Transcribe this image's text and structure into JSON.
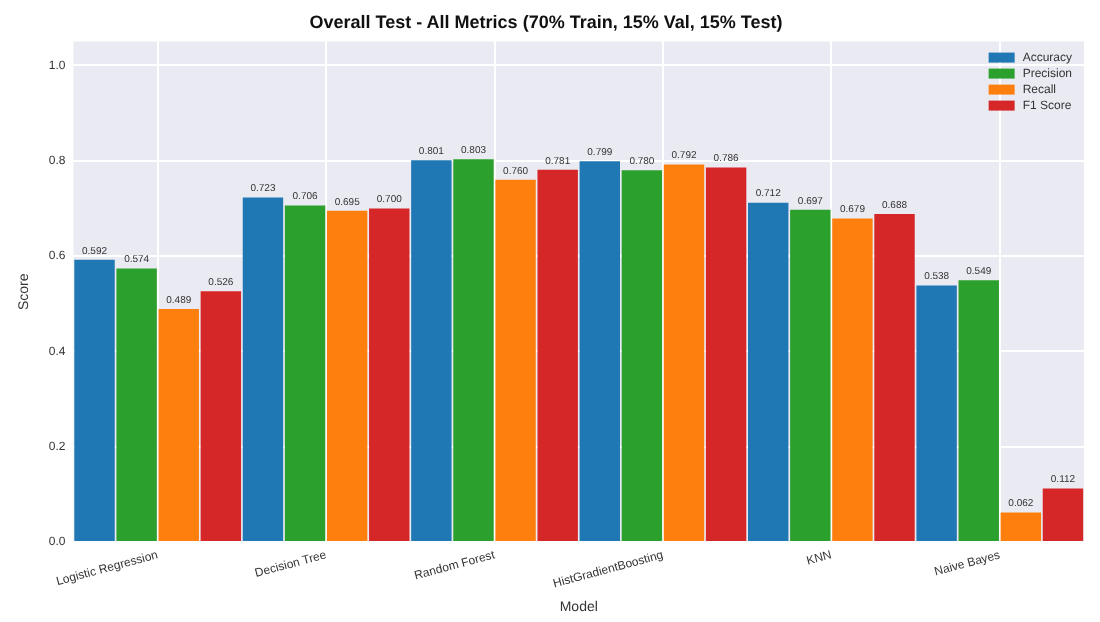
{
  "chart_data": {
    "type": "bar",
    "title": "Overall Test - All Metrics (70% Train, 15% Val, 15% Test)",
    "xlabel": "Model",
    "ylabel": "Score",
    "categories": [
      "Logistic Regression",
      "Decision Tree",
      "Random Forest",
      "HistGradientBoosting",
      "KNN",
      "Naive Bayes"
    ],
    "series": [
      {
        "name": "Accuracy",
        "color": "#1f77b4",
        "values": [
          0.592,
          0.723,
          0.801,
          0.799,
          0.712,
          0.538
        ],
        "value_labels": [
          "0.592",
          "0.723",
          "0.801",
          "0.799",
          "0.712",
          "0.538"
        ]
      },
      {
        "name": "Precision",
        "color": "#2ca02c",
        "values": [
          0.574,
          0.706,
          0.803,
          0.78,
          0.697,
          0.549
        ],
        "value_labels": [
          "0.574",
          "0.706",
          "0.803",
          "0.780",
          "0.697",
          "0.549"
        ]
      },
      {
        "name": "Recall",
        "color": "#ff7f0e",
        "values": [
          0.489,
          0.695,
          0.76,
          0.792,
          0.679,
          0.062
        ],
        "value_labels": [
          "0.489",
          "0.695",
          "0.760",
          "0.792",
          "0.679",
          "0.062"
        ]
      },
      {
        "name": "F1 Score",
        "color": "#d62728",
        "values": [
          0.526,
          0.7,
          0.781,
          0.786,
          0.688,
          0.112
        ],
        "value_labels": [
          "0.526",
          "0.700",
          "0.781",
          "0.786",
          "0.688",
          "0.112"
        ]
      }
    ],
    "ylim": [
      0,
      1.05
    ],
    "yticks": [
      {
        "value": 0,
        "label": "0.0"
      },
      {
        "value": 0.2,
        "label": "0.2"
      },
      {
        "value": 0.4,
        "label": "0.4"
      },
      {
        "value": 0.6,
        "label": "0.6"
      },
      {
        "value": 0.8,
        "label": "0.8"
      },
      {
        "value": 1,
        "label": "1.0"
      }
    ],
    "grid": true,
    "legend": "top right"
  }
}
